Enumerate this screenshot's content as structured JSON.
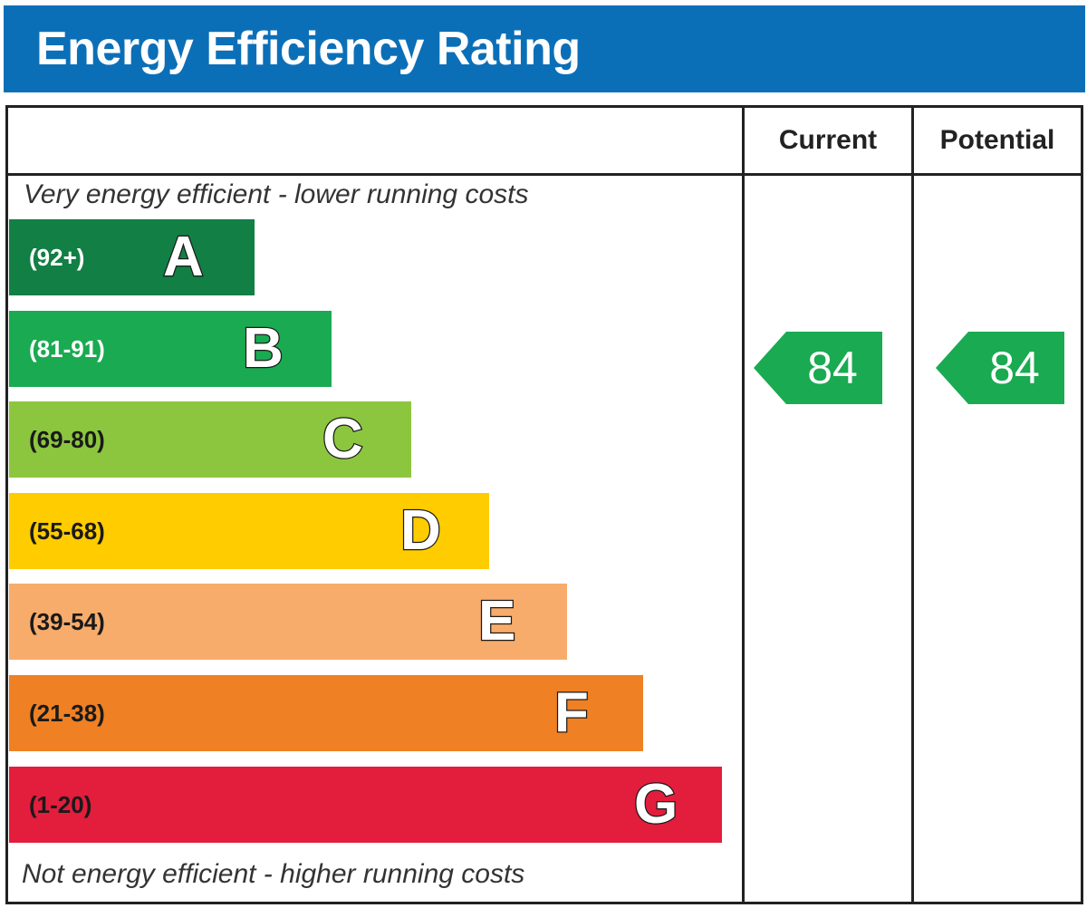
{
  "title": "Energy Efficiency Rating",
  "columns": {
    "current": "Current",
    "potential": "Potential"
  },
  "notes": {
    "top": "Very energy efficient - lower running costs",
    "bottom": "Not energy efficient - higher running costs"
  },
  "chart_data": {
    "type": "bar",
    "title": "Energy Efficiency Rating",
    "categories": [
      "A",
      "B",
      "C",
      "D",
      "E",
      "F",
      "G"
    ],
    "bands": [
      {
        "letter": "A",
        "range": "(92+)",
        "color": "#127f45",
        "text_color": "#ffffff"
      },
      {
        "letter": "B",
        "range": "(81-91)",
        "color": "#1aaa51",
        "text_color": "#ffffff"
      },
      {
        "letter": "C",
        "range": "(69-80)",
        "color": "#8cc63f",
        "text_color": "#1a1a1a"
      },
      {
        "letter": "D",
        "range": "(55-68)",
        "color": "#ffcc00",
        "text_color": "#1a1a1a"
      },
      {
        "letter": "E",
        "range": "(39-54)",
        "color": "#f7ac6b",
        "text_color": "#1a1a1a"
      },
      {
        "letter": "F",
        "range": "(21-38)",
        "color": "#ef8023",
        "text_color": "#1a1a1a"
      },
      {
        "letter": "G",
        "range": "(1-20)",
        "color": "#e31d3c",
        "text_color": "#1a1a1a"
      }
    ],
    "current": {
      "value": 84,
      "band": "B",
      "color": "#1aaa51"
    },
    "potential": {
      "value": 84,
      "band": "B",
      "color": "#1aaa51"
    }
  }
}
